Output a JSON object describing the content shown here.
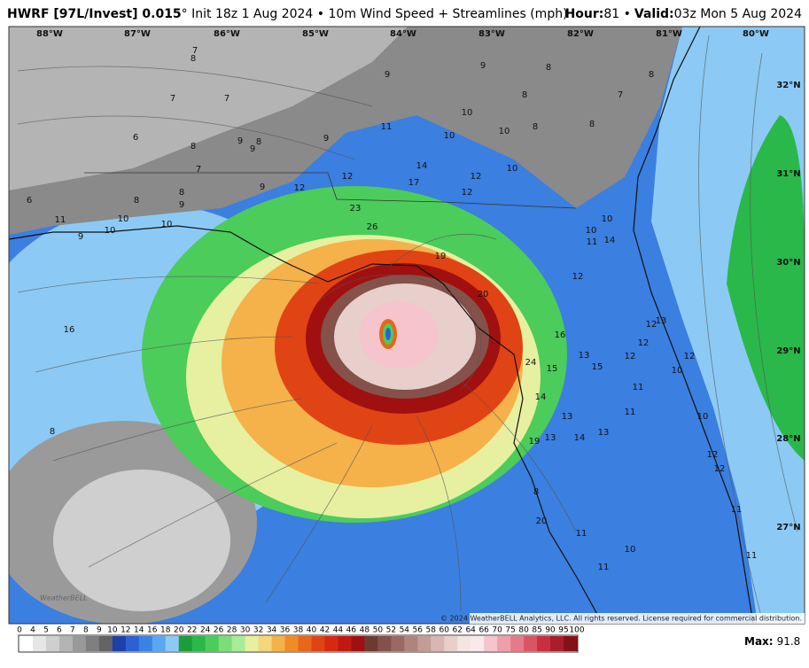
{
  "header": {
    "title_bold": "HWRF [97L/Invest] 0.015",
    "title_rest": "° Init 18z 1 Aug 2024 • 10m Wind Speed + Streamlines (mph)",
    "hour_label": "Hour:",
    "hour_value": "81 •",
    "valid_label": "Valid:",
    "valid_value": "03z Mon 5 Aug 2024"
  },
  "map": {
    "longitudes": [
      "88°W",
      "87°W",
      "86°W",
      "85°W",
      "84°W",
      "83°W",
      "82°W",
      "81°W",
      "80°W"
    ],
    "latitudes": [
      "32°N",
      "31°N",
      "30°N",
      "29°N",
      "28°N",
      "27°N"
    ],
    "wind_labels": [
      "7",
      "8",
      "7",
      "7",
      "6",
      "8",
      "9",
      "8",
      "9",
      "7",
      "9",
      "6",
      "8",
      "8",
      "9",
      "11",
      "10",
      "10",
      "10",
      "9",
      "9",
      "9",
      "8",
      "8",
      "8",
      "7",
      "10",
      "11",
      "10",
      "10",
      "8",
      "8",
      "9",
      "14",
      "10",
      "12",
      "17",
      "12",
      "12",
      "12",
      "23",
      "26",
      "19",
      "20",
      "16",
      "16",
      "24",
      "15",
      "13",
      "15",
      "14",
      "13",
      "13",
      "14",
      "13",
      "19",
      "8",
      "12",
      "11",
      "10",
      "14",
      "10",
      "12",
      "12",
      "12",
      "13",
      "11",
      "11",
      "10",
      "12",
      "8",
      "20",
      "11",
      "10",
      "11",
      "11",
      "11",
      "12",
      "12",
      "10"
    ],
    "copyright": "© 2024 WeatherBELL Analytics, LLC. All rights reserved. License required for commercial distribution.",
    "logo": "WeatherBELL"
  },
  "colorbar": {
    "labels": [
      0,
      4,
      5,
      6,
      7,
      8,
      9,
      10,
      12,
      14,
      16,
      18,
      20,
      22,
      24,
      26,
      28,
      30,
      32,
      34,
      36,
      38,
      40,
      42,
      44,
      46,
      48,
      50,
      52,
      54,
      56,
      58,
      60,
      62,
      64,
      66,
      70,
      75,
      80,
      85,
      90,
      95,
      100
    ],
    "colors": [
      "#ffffff",
      "#e6e6e6",
      "#cfcfcf",
      "#b4b4b4",
      "#999999",
      "#7f7f7f",
      "#646464",
      "#1e3ea8",
      "#2a62d4",
      "#3b82e6",
      "#5aa6f0",
      "#8ccaf5",
      "#1a9e3a",
      "#2ab84a",
      "#4ccc5a",
      "#7ddd78",
      "#a8eb98",
      "#e6f0a0",
      "#f5d67a",
      "#f5b14a",
      "#f08c28",
      "#e8661a",
      "#e04414",
      "#d62a10",
      "#c01a10",
      "#a01010",
      "#6e3a30",
      "#84524a",
      "#9a6a62",
      "#b0847c",
      "#c49c96",
      "#d8b6b2",
      "#e8cfcc",
      "#f4e4e2",
      "#fbe8ec",
      "#f5c4cc",
      "#eda0ac",
      "#e67a8a",
      "#dc5464",
      "#c83040",
      "#a81e2a",
      "#861018"
    ]
  },
  "max": {
    "label": "Max:",
    "value": 91.8
  }
}
